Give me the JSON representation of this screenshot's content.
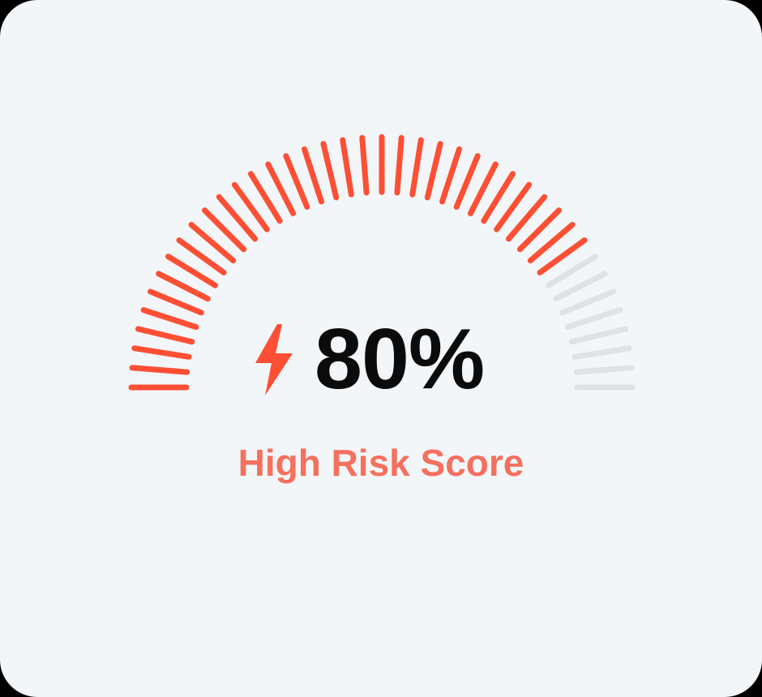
{
  "gauge": {
    "value_percent": 80,
    "tick_count": 41,
    "start_angle_deg": 180,
    "end_angle_deg": 0,
    "active_color": "#fd4f34",
    "inactive_color": "#dfe2e5"
  },
  "score": {
    "value_text": "80%",
    "icon": "lightning-bolt-icon",
    "icon_color": "#fd4f34"
  },
  "label": {
    "text": "High Risk Score",
    "color": "#f5705d"
  }
}
